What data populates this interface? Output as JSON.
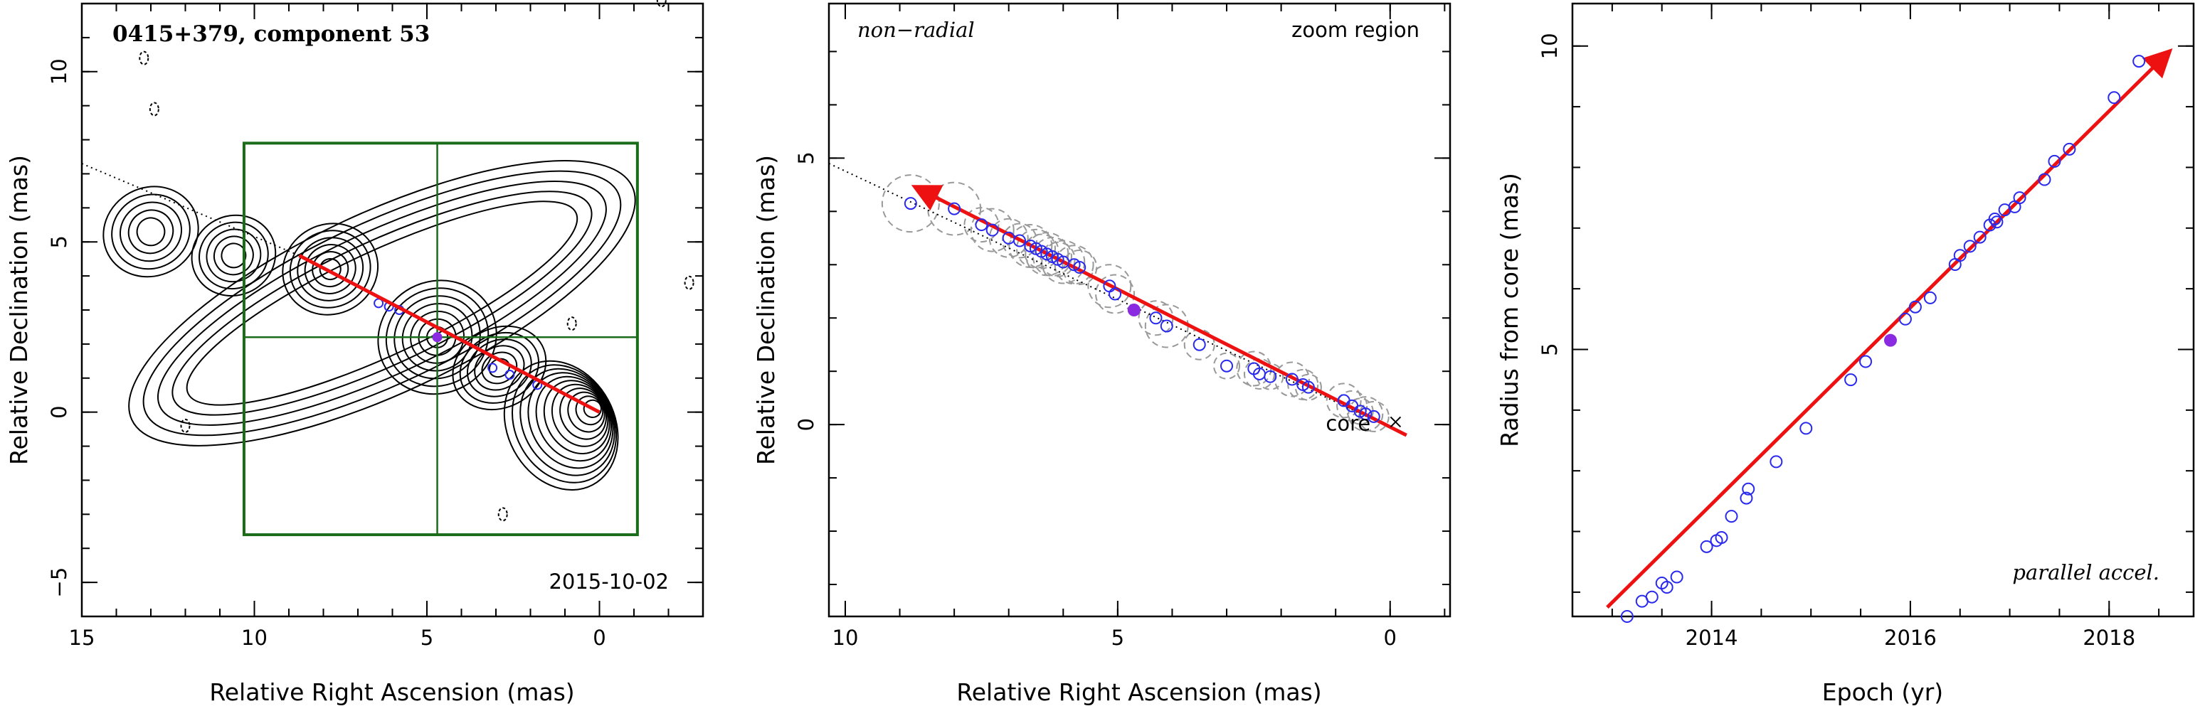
{
  "figure": {
    "source_name": "0415+379",
    "component_label": "component 53"
  },
  "chart_data": [
    {
      "type": "scatter",
      "panel": "sky map",
      "title": "0415+379, component 53",
      "date_label": "2015-10-02",
      "xlabel": "Relative Right Ascension (mas)",
      "ylabel": "Relative Declination (mas)",
      "xlim": [
        15,
        -3
      ],
      "ylim": [
        -6,
        12
      ],
      "x_ticks": [
        15,
        10,
        5,
        0
      ],
      "y_ticks": [
        -5,
        0,
        5,
        10
      ],
      "contour_features": [
        {
          "x": 0.2,
          "y": 0.1
        },
        {
          "x": 2.9,
          "y": 1.3
        },
        {
          "x": 4.7,
          "y": 2.2
        },
        {
          "x": 7.8,
          "y": 4.2
        },
        {
          "x": 10.6,
          "y": 4.6
        },
        {
          "x": 13.0,
          "y": 5.3
        }
      ],
      "points": [
        {
          "x": 5.8,
          "y": 3.0
        },
        {
          "x": 6.1,
          "y": 3.1
        },
        {
          "x": 6.4,
          "y": 3.2
        },
        {
          "x": 3.1,
          "y": 1.3
        },
        {
          "x": 2.6,
          "y": 1.1
        },
        {
          "x": 1.8,
          "y": 0.8
        }
      ],
      "highlighted_point": {
        "x": 4.7,
        "y": 2.2
      },
      "zoom_box": {
        "x": [
          -1.1,
          10.3
        ],
        "y": [
          -3.6,
          7.9
        ]
      },
      "crosshair": {
        "x": 4.7,
        "y": 2.2
      },
      "trajectory_start": {
        "x": 8.7,
        "y": 4.6
      },
      "trajectory_end": {
        "x": 0.0,
        "y": 0.0
      },
      "extrapolation_line": [
        [
          15,
          7.3
        ],
        [
          8.7,
          4.6
        ]
      ]
    },
    {
      "type": "scatter",
      "panel": "zoom",
      "label_left": "non−radial",
      "label_right": "zoom region",
      "core_label": "core",
      "xlabel": "Relative Right Ascension (mas)",
      "ylabel": "Relative Declination (mas)",
      "xlim": [
        10.3,
        -1.1
      ],
      "ylim": [
        -3.6,
        7.9
      ],
      "x_ticks": [
        10,
        5,
        0
      ],
      "y_ticks": [
        0,
        5
      ],
      "points": [
        {
          "x": 8.8,
          "y": 4.15
        },
        {
          "x": 8.0,
          "y": 4.05
        },
        {
          "x": 7.5,
          "y": 3.75
        },
        {
          "x": 7.3,
          "y": 3.65
        },
        {
          "x": 7.0,
          "y": 3.5
        },
        {
          "x": 6.8,
          "y": 3.45
        },
        {
          "x": 6.6,
          "y": 3.35
        },
        {
          "x": 6.5,
          "y": 3.3
        },
        {
          "x": 6.4,
          "y": 3.25
        },
        {
          "x": 6.3,
          "y": 3.2
        },
        {
          "x": 6.2,
          "y": 3.15
        },
        {
          "x": 6.1,
          "y": 3.1
        },
        {
          "x": 6.0,
          "y": 3.05
        },
        {
          "x": 5.8,
          "y": 3.0
        },
        {
          "x": 5.7,
          "y": 2.95
        },
        {
          "x": 5.15,
          "y": 2.6
        },
        {
          "x": 5.05,
          "y": 2.45
        },
        {
          "x": 4.3,
          "y": 2.0
        },
        {
          "x": 4.1,
          "y": 1.85
        },
        {
          "x": 3.5,
          "y": 1.5
        },
        {
          "x": 3.0,
          "y": 1.1
        },
        {
          "x": 2.5,
          "y": 1.05
        },
        {
          "x": 2.4,
          "y": 0.95
        },
        {
          "x": 2.2,
          "y": 0.9
        },
        {
          "x": 1.8,
          "y": 0.85
        },
        {
          "x": 1.6,
          "y": 0.75
        },
        {
          "x": 1.5,
          "y": 0.7
        },
        {
          "x": 0.85,
          "y": 0.45
        },
        {
          "x": 0.7,
          "y": 0.35
        },
        {
          "x": 0.55,
          "y": 0.25
        },
        {
          "x": 0.45,
          "y": 0.2
        },
        {
          "x": 0.3,
          "y": 0.15
        }
      ],
      "highlighted_point": {
        "x": 4.7,
        "y": 2.15
      },
      "trajectory_start": {
        "x": 8.7,
        "y": 4.45
      },
      "trajectory_end": {
        "x": -0.3,
        "y": -0.2
      },
      "core_position": {
        "x": -0.1,
        "y": 0.05
      },
      "extrapolation_line": [
        [
          10.3,
          4.9
        ],
        [
          8.7,
          4.45
        ]
      ]
    },
    {
      "type": "scatter",
      "panel": "radius vs epoch",
      "label": "parallel accel.",
      "xlabel": "Epoch (yr)",
      "ylabel": "Radius from core (mas)",
      "xlim": [
        2012.6,
        2018.85
      ],
      "ylim": [
        0.6,
        10.7
      ],
      "x_ticks": [
        2014,
        2016,
        2018
      ],
      "y_ticks": [
        5,
        10
      ],
      "points": [
        {
          "x": 2013.15,
          "y": 0.6
        },
        {
          "x": 2013.3,
          "y": 0.85
        },
        {
          "x": 2013.4,
          "y": 0.92
        },
        {
          "x": 2013.5,
          "y": 1.15
        },
        {
          "x": 2013.55,
          "y": 1.08
        },
        {
          "x": 2013.65,
          "y": 1.25
        },
        {
          "x": 2013.95,
          "y": 1.75
        },
        {
          "x": 2014.05,
          "y": 1.85
        },
        {
          "x": 2014.1,
          "y": 1.9
        },
        {
          "x": 2014.2,
          "y": 2.25
        },
        {
          "x": 2014.35,
          "y": 2.55
        },
        {
          "x": 2014.37,
          "y": 2.7
        },
        {
          "x": 2014.65,
          "y": 3.15
        },
        {
          "x": 2014.95,
          "y": 3.7
        },
        {
          "x": 2015.4,
          "y": 4.5
        },
        {
          "x": 2015.55,
          "y": 4.8
        },
        {
          "x": 2015.95,
          "y": 5.5
        },
        {
          "x": 2016.05,
          "y": 5.7
        },
        {
          "x": 2016.2,
          "y": 5.85
        },
        {
          "x": 2016.45,
          "y": 6.4
        },
        {
          "x": 2016.5,
          "y": 6.55
        },
        {
          "x": 2016.6,
          "y": 6.7
        },
        {
          "x": 2016.7,
          "y": 6.85
        },
        {
          "x": 2016.8,
          "y": 7.05
        },
        {
          "x": 2016.85,
          "y": 7.15
        },
        {
          "x": 2016.87,
          "y": 7.1
        },
        {
          "x": 2016.95,
          "y": 7.3
        },
        {
          "x": 2017.05,
          "y": 7.35
        },
        {
          "x": 2017.1,
          "y": 7.5
        },
        {
          "x": 2017.35,
          "y": 7.8
        },
        {
          "x": 2017.45,
          "y": 8.1
        },
        {
          "x": 2017.6,
          "y": 8.3
        },
        {
          "x": 2018.05,
          "y": 9.15
        },
        {
          "x": 2018.3,
          "y": 9.75
        }
      ],
      "highlighted_point": {
        "x": 2015.8,
        "y": 5.15
      },
      "fit_line": [
        [
          2012.95,
          0.75
        ],
        [
          2018.6,
          9.9
        ]
      ]
    }
  ]
}
